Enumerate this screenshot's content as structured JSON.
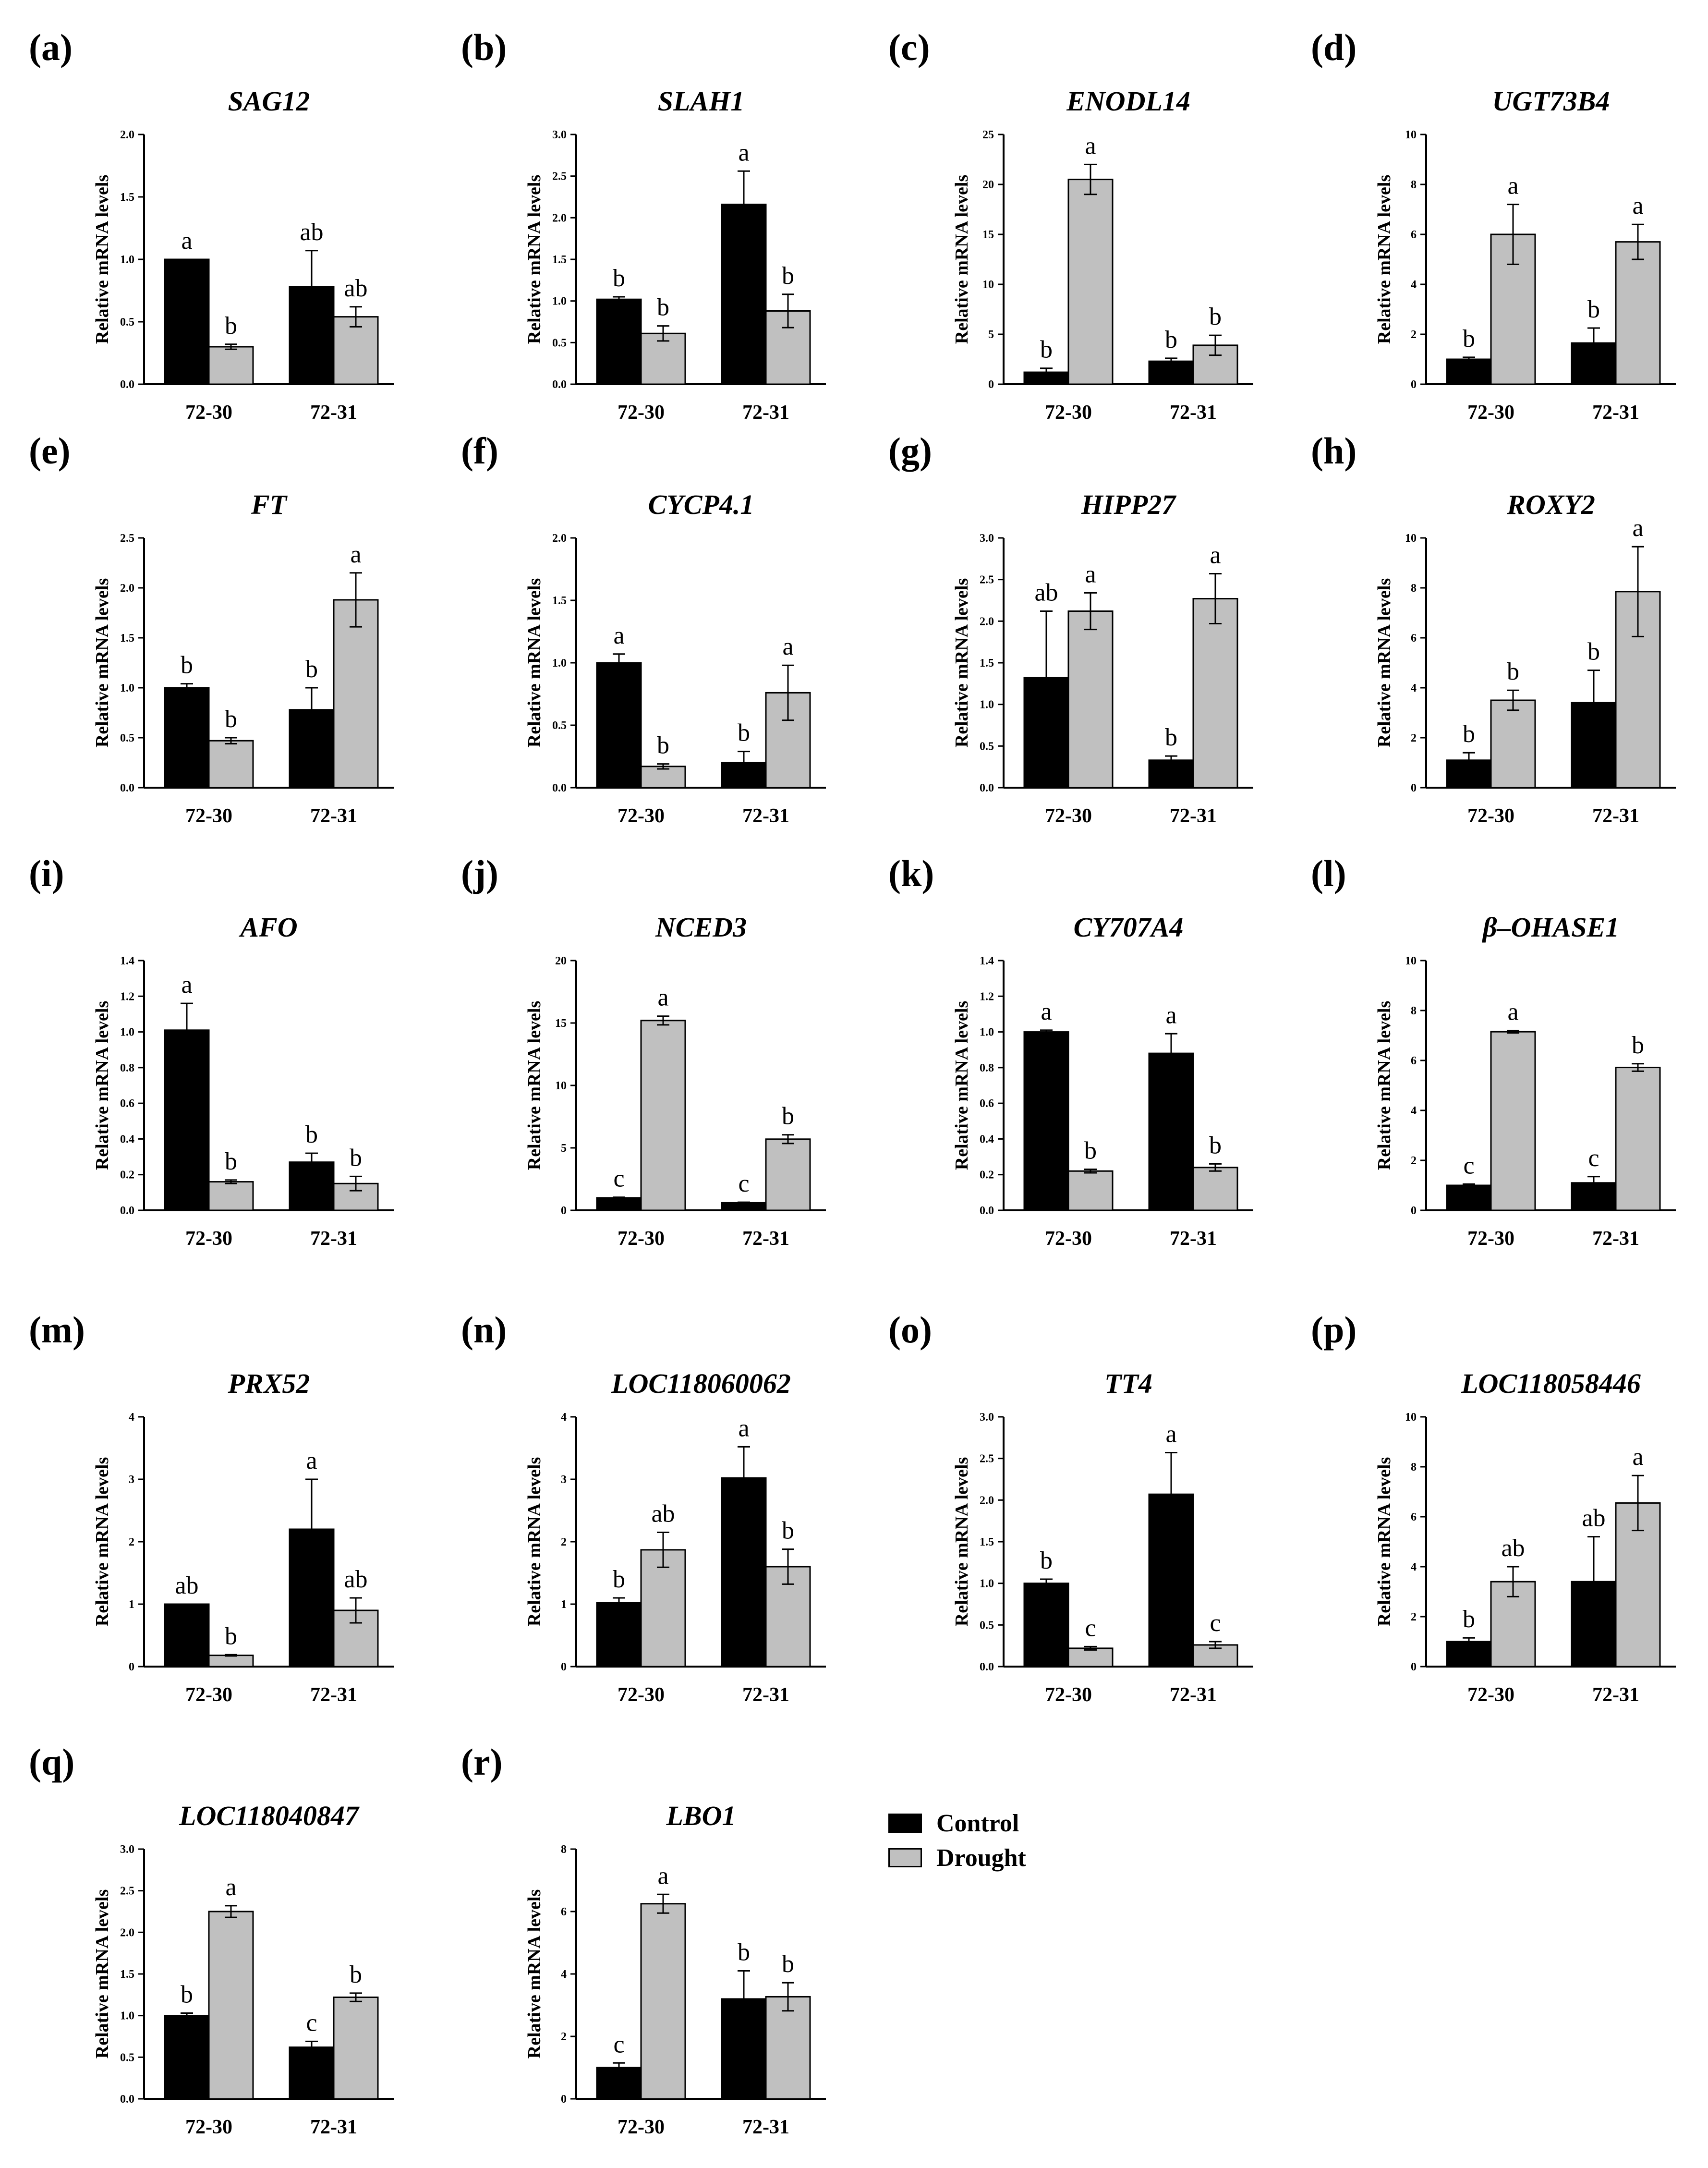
{
  "figure": {
    "ylabel": "Relative mRNA levels",
    "legend": {
      "entries": [
        {
          "label": "Control",
          "color": "#000000"
        },
        {
          "label": "Drought",
          "color": "#c0c0c0"
        }
      ]
    }
  },
  "chart_data": [
    {
      "type": "bar",
      "panel": "(a)",
      "title": "SAG12",
      "ylabel": "Relative mRNA levels",
      "categories": [
        "72-30",
        "72-31"
      ],
      "ylim": [
        0,
        2.0
      ],
      "yticks": [
        "0.0",
        "0.5",
        "1.0",
        "1.5",
        "2.0"
      ],
      "series": [
        {
          "name": "Control",
          "values": [
            1.0,
            0.78
          ],
          "errors": [
            0.0,
            0.29
          ],
          "letters": [
            "a",
            "ab"
          ]
        },
        {
          "name": "Drought",
          "values": [
            0.3,
            0.54
          ],
          "errors": [
            0.02,
            0.08
          ],
          "letters": [
            "b",
            "ab"
          ]
        }
      ]
    },
    {
      "type": "bar",
      "panel": "(b)",
      "title": "SLAH1",
      "ylabel": "Relative mRNA levels",
      "categories": [
        "72-30",
        "72-31"
      ],
      "ylim": [
        0,
        3.0
      ],
      "yticks": [
        "0.0",
        "0.5",
        "1.0",
        "1.5",
        "2.0",
        "2.5",
        "3.0"
      ],
      "series": [
        {
          "name": "Control",
          "values": [
            1.02,
            2.16
          ],
          "errors": [
            0.03,
            0.4
          ],
          "letters": [
            "b",
            "a"
          ]
        },
        {
          "name": "Drought",
          "values": [
            0.61,
            0.88
          ],
          "errors": [
            0.09,
            0.2
          ],
          "letters": [
            "b",
            "b"
          ]
        }
      ]
    },
    {
      "type": "bar",
      "panel": "(c)",
      "title": "ENODL14",
      "ylabel": "Relative mRNA levels",
      "categories": [
        "72-30",
        "72-31"
      ],
      "ylim": [
        0,
        25
      ],
      "yticks": [
        "0",
        "5",
        "10",
        "15",
        "20",
        "25"
      ],
      "series": [
        {
          "name": "Control",
          "values": [
            1.2,
            2.3
          ],
          "errors": [
            0.4,
            0.3
          ],
          "letters": [
            "b",
            "b"
          ]
        },
        {
          "name": "Drought",
          "values": [
            20.5,
            3.9
          ],
          "errors": [
            1.5,
            1.0
          ],
          "letters": [
            "a",
            "b"
          ]
        }
      ]
    },
    {
      "type": "bar",
      "panel": "(d)",
      "title": "UGT73B4",
      "ylabel": "Relative mRNA levels",
      "categories": [
        "72-30",
        "72-31"
      ],
      "ylim": [
        0,
        10
      ],
      "yticks": [
        "0",
        "2",
        "4",
        "6",
        "8",
        "10"
      ],
      "series": [
        {
          "name": "Control",
          "values": [
            1.0,
            1.65
          ],
          "errors": [
            0.08,
            0.6
          ],
          "letters": [
            "b",
            "b"
          ]
        },
        {
          "name": "Drought",
          "values": [
            6.0,
            5.7
          ],
          "errors": [
            1.2,
            0.7
          ],
          "letters": [
            "a",
            "a"
          ]
        }
      ]
    },
    {
      "type": "bar",
      "panel": "(e)",
      "title": "FT",
      "ylabel": "Relative mRNA levels",
      "categories": [
        "72-30",
        "72-31"
      ],
      "ylim": [
        0,
        2.5
      ],
      "yticks": [
        "0.0",
        "0.5",
        "1.0",
        "1.5",
        "2.0",
        "2.5"
      ],
      "series": [
        {
          "name": "Control",
          "values": [
            1.0,
            0.78
          ],
          "errors": [
            0.04,
            0.22
          ],
          "letters": [
            "b",
            "b"
          ]
        },
        {
          "name": "Drought",
          "values": [
            0.47,
            1.88
          ],
          "errors": [
            0.03,
            0.27
          ],
          "letters": [
            "b",
            "a"
          ]
        }
      ]
    },
    {
      "type": "bar",
      "panel": "(f)",
      "title": "CYCP4.1",
      "ylabel": "Relative mRNA levels",
      "categories": [
        "72-30",
        "72-31"
      ],
      "ylim": [
        0,
        2.0
      ],
      "yticks": [
        "0.0",
        "0.5",
        "1.0",
        "1.5",
        "2.0"
      ],
      "series": [
        {
          "name": "Control",
          "values": [
            1.0,
            0.2
          ],
          "errors": [
            0.07,
            0.09
          ],
          "letters": [
            "a",
            "b"
          ]
        },
        {
          "name": "Drought",
          "values": [
            0.17,
            0.76
          ],
          "errors": [
            0.02,
            0.22
          ],
          "letters": [
            "b",
            "a"
          ]
        }
      ]
    },
    {
      "type": "bar",
      "panel": "(g)",
      "title": "HIPP27",
      "ylabel": "Relative mRNA levels",
      "categories": [
        "72-30",
        "72-31"
      ],
      "ylim": [
        0,
        3.0
      ],
      "yticks": [
        "0.0",
        "0.5",
        "1.0",
        "1.5",
        "2.0",
        "2.5",
        "3.0"
      ],
      "series": [
        {
          "name": "Control",
          "values": [
            1.32,
            0.33
          ],
          "errors": [
            0.8,
            0.05
          ],
          "letters": [
            "ab",
            "b"
          ]
        },
        {
          "name": "Drought",
          "values": [
            2.12,
            2.27
          ],
          "errors": [
            0.22,
            0.3
          ],
          "letters": [
            "a",
            "a"
          ]
        }
      ]
    },
    {
      "type": "bar",
      "panel": "(h)",
      "title": "ROXY2",
      "ylabel": "Relative mRNA levels",
      "categories": [
        "72-30",
        "72-31"
      ],
      "ylim": [
        0,
        10
      ],
      "yticks": [
        "0",
        "2",
        "4",
        "6",
        "8",
        "10"
      ],
      "series": [
        {
          "name": "Control",
          "values": [
            1.1,
            3.4
          ],
          "errors": [
            0.3,
            1.3
          ],
          "letters": [
            "b",
            "b"
          ]
        },
        {
          "name": "Drought",
          "values": [
            3.5,
            7.85
          ],
          "errors": [
            0.4,
            1.8
          ],
          "letters": [
            "b",
            "a"
          ]
        }
      ]
    },
    {
      "type": "bar",
      "panel": "(i)",
      "title": "AFO",
      "ylabel": "Relative mRNA levels",
      "categories": [
        "72-30",
        "72-31"
      ],
      "ylim": [
        0,
        1.4
      ],
      "yticks": [
        "0.0",
        "0.2",
        "0.4",
        "0.6",
        "0.8",
        "1.0",
        "1.2",
        "1.4"
      ],
      "series": [
        {
          "name": "Control",
          "values": [
            1.01,
            0.27
          ],
          "errors": [
            0.15,
            0.05
          ],
          "letters": [
            "a",
            "b"
          ]
        },
        {
          "name": "Drought",
          "values": [
            0.16,
            0.15
          ],
          "errors": [
            0.01,
            0.04
          ],
          "letters": [
            "b",
            "b"
          ]
        }
      ]
    },
    {
      "type": "bar",
      "panel": "(j)",
      "title": "NCED3",
      "ylabel": "Relative mRNA levels",
      "categories": [
        "72-30",
        "72-31"
      ],
      "ylim": [
        0,
        20
      ],
      "yticks": [
        "0",
        "5",
        "10",
        "15",
        "20"
      ],
      "series": [
        {
          "name": "Control",
          "values": [
            1.0,
            0.6
          ],
          "errors": [
            0.05,
            0.05
          ],
          "letters": [
            "c",
            "c"
          ]
        },
        {
          "name": "Drought",
          "values": [
            15.2,
            5.7
          ],
          "errors": [
            0.35,
            0.35
          ],
          "letters": [
            "a",
            "b"
          ]
        }
      ]
    },
    {
      "type": "bar",
      "panel": "(k)",
      "title": "CY707A4",
      "ylabel": "Relative mRNA levels",
      "categories": [
        "72-30",
        "72-31"
      ],
      "ylim": [
        0,
        1.4
      ],
      "yticks": [
        "0.0",
        "0.2",
        "0.4",
        "0.6",
        "0.8",
        "1.0",
        "1.2",
        "1.4"
      ],
      "series": [
        {
          "name": "Control",
          "values": [
            1.0,
            0.88
          ],
          "errors": [
            0.01,
            0.11
          ],
          "letters": [
            "a",
            "a"
          ]
        },
        {
          "name": "Drought",
          "values": [
            0.22,
            0.24
          ],
          "errors": [
            0.01,
            0.02
          ],
          "letters": [
            "b",
            "b"
          ]
        }
      ]
    },
    {
      "type": "bar",
      "panel": "(l)",
      "title": "β–OHASE1",
      "ylabel": "Relative mRNA levels",
      "categories": [
        "72-30",
        "72-31"
      ],
      "ylim": [
        0,
        10
      ],
      "yticks": [
        "0",
        "2",
        "4",
        "6",
        "8",
        "10"
      ],
      "series": [
        {
          "name": "Control",
          "values": [
            1.0,
            1.1
          ],
          "errors": [
            0.05,
            0.25
          ],
          "letters": [
            "c",
            "c"
          ]
        },
        {
          "name": "Drought",
          "values": [
            7.15,
            5.72
          ],
          "errors": [
            0.05,
            0.15
          ],
          "letters": [
            "a",
            "b"
          ]
        }
      ]
    },
    {
      "type": "bar",
      "panel": "(m)",
      "title": "PRX52",
      "ylabel": "Relative mRNA levels",
      "categories": [
        "72-30",
        "72-31"
      ],
      "ylim": [
        0,
        4
      ],
      "yticks": [
        "0",
        "1",
        "2",
        "3",
        "4"
      ],
      "series": [
        {
          "name": "Control",
          "values": [
            1.0,
            2.2
          ],
          "errors": [
            0.0,
            0.8
          ],
          "letters": [
            "ab",
            "a"
          ]
        },
        {
          "name": "Drought",
          "values": [
            0.18,
            0.9
          ],
          "errors": [
            0.01,
            0.2
          ],
          "letters": [
            "b",
            "ab"
          ]
        }
      ]
    },
    {
      "type": "bar",
      "panel": "(n)",
      "title": "LOC118060062",
      "ylabel": "Relative mRNA levels",
      "categories": [
        "72-30",
        "72-31"
      ],
      "ylim": [
        0,
        4
      ],
      "yticks": [
        "0",
        "1",
        "2",
        "3",
        "4"
      ],
      "series": [
        {
          "name": "Control",
          "values": [
            1.02,
            3.02
          ],
          "errors": [
            0.08,
            0.5
          ],
          "letters": [
            "b",
            "a"
          ]
        },
        {
          "name": "Drought",
          "values": [
            1.87,
            1.6
          ],
          "errors": [
            0.28,
            0.28
          ],
          "letters": [
            "ab",
            "b"
          ]
        }
      ]
    },
    {
      "type": "bar",
      "panel": "(o)",
      "title": "TT4",
      "ylabel": "Relative mRNA levels",
      "categories": [
        "72-30",
        "72-31"
      ],
      "ylim": [
        0,
        3.0
      ],
      "yticks": [
        "0.0",
        "0.5",
        "1.0",
        "1.5",
        "2.0",
        "2.5",
        "3.0"
      ],
      "series": [
        {
          "name": "Control",
          "values": [
            1.0,
            2.07
          ],
          "errors": [
            0.05,
            0.5
          ],
          "letters": [
            "b",
            "a"
          ]
        },
        {
          "name": "Drought",
          "values": [
            0.22,
            0.26
          ],
          "errors": [
            0.02,
            0.04
          ],
          "letters": [
            "c",
            "c"
          ]
        }
      ]
    },
    {
      "type": "bar",
      "panel": "(p)",
      "title": "LOC118058446",
      "ylabel": "Relative mRNA levels",
      "categories": [
        "72-30",
        "72-31"
      ],
      "ylim": [
        0,
        10
      ],
      "yticks": [
        "0",
        "2",
        "4",
        "6",
        "8",
        "10"
      ],
      "series": [
        {
          "name": "Control",
          "values": [
            1.0,
            3.4
          ],
          "errors": [
            0.15,
            1.8
          ],
          "letters": [
            "b",
            "ab"
          ]
        },
        {
          "name": "Drought",
          "values": [
            3.4,
            6.55
          ],
          "errors": [
            0.6,
            1.1
          ],
          "letters": [
            "ab",
            "a"
          ]
        }
      ]
    },
    {
      "type": "bar",
      "panel": "(q)",
      "title": "LOC118040847",
      "ylabel": "Relative mRNA levels",
      "categories": [
        "72-30",
        "72-31"
      ],
      "ylim": [
        0,
        3.0
      ],
      "yticks": [
        "0.0",
        "0.5",
        "1.0",
        "1.5",
        "2.0",
        "2.5",
        "3.0"
      ],
      "series": [
        {
          "name": "Control",
          "values": [
            1.0,
            0.62
          ],
          "errors": [
            0.03,
            0.07
          ],
          "letters": [
            "b",
            "c"
          ]
        },
        {
          "name": "Drought",
          "values": [
            2.25,
            1.22
          ],
          "errors": [
            0.07,
            0.05
          ],
          "letters": [
            "a",
            "b"
          ]
        }
      ]
    },
    {
      "type": "bar",
      "panel": "(r)",
      "title": "LBO1",
      "ylabel": "Relative mRNA levels",
      "categories": [
        "72-30",
        "72-31"
      ],
      "ylim": [
        0,
        8
      ],
      "yticks": [
        "0",
        "2",
        "4",
        "6",
        "8"
      ],
      "series": [
        {
          "name": "Control",
          "values": [
            1.0,
            3.2
          ],
          "errors": [
            0.15,
            0.9
          ],
          "letters": [
            "c",
            "b"
          ]
        },
        {
          "name": "Drought",
          "values": [
            6.25,
            3.27
          ],
          "errors": [
            0.3,
            0.45
          ],
          "letters": [
            "a",
            "b"
          ]
        }
      ]
    }
  ]
}
